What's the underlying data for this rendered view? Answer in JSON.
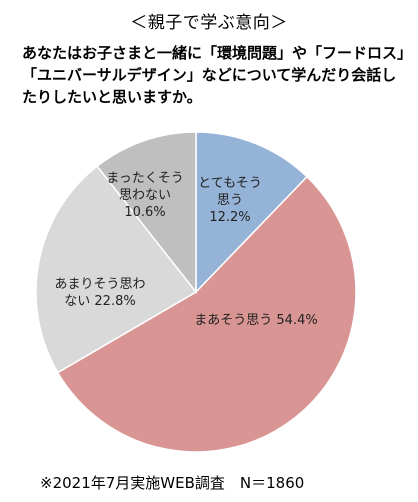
{
  "heading": "＜親子で学ぶ意向＞",
  "question": "あなたはお子さまと一緒に「環境問題」や「フードロス」「ユニバーサルデザイン」などについて学んだり会話したりしたいと思いますか。",
  "footnote": "※2021年7月実施WEB調査　N＝1860",
  "chart_data": {
    "type": "pie",
    "start": "12 o'clock",
    "direction": "clockwise",
    "slices": [
      {
        "label_lines": [
          "とてもそう",
          "思う"
        ],
        "value": 12.2,
        "value_text": "12.2%",
        "color": "#95b3d7"
      },
      {
        "label_lines": [
          "まあそう思う"
        ],
        "value": 54.4,
        "value_text": "54.4%",
        "color": "#d99594"
      },
      {
        "label_lines": [
          "あまりそう思わ",
          "ない"
        ],
        "value": 22.8,
        "value_text": "22.8%",
        "color": "#d9d9d9"
      },
      {
        "label_lines": [
          "まったくそう",
          "思わない"
        ],
        "value": 10.6,
        "value_text": "10.6%",
        "color": "#bfbfbf"
      }
    ]
  }
}
